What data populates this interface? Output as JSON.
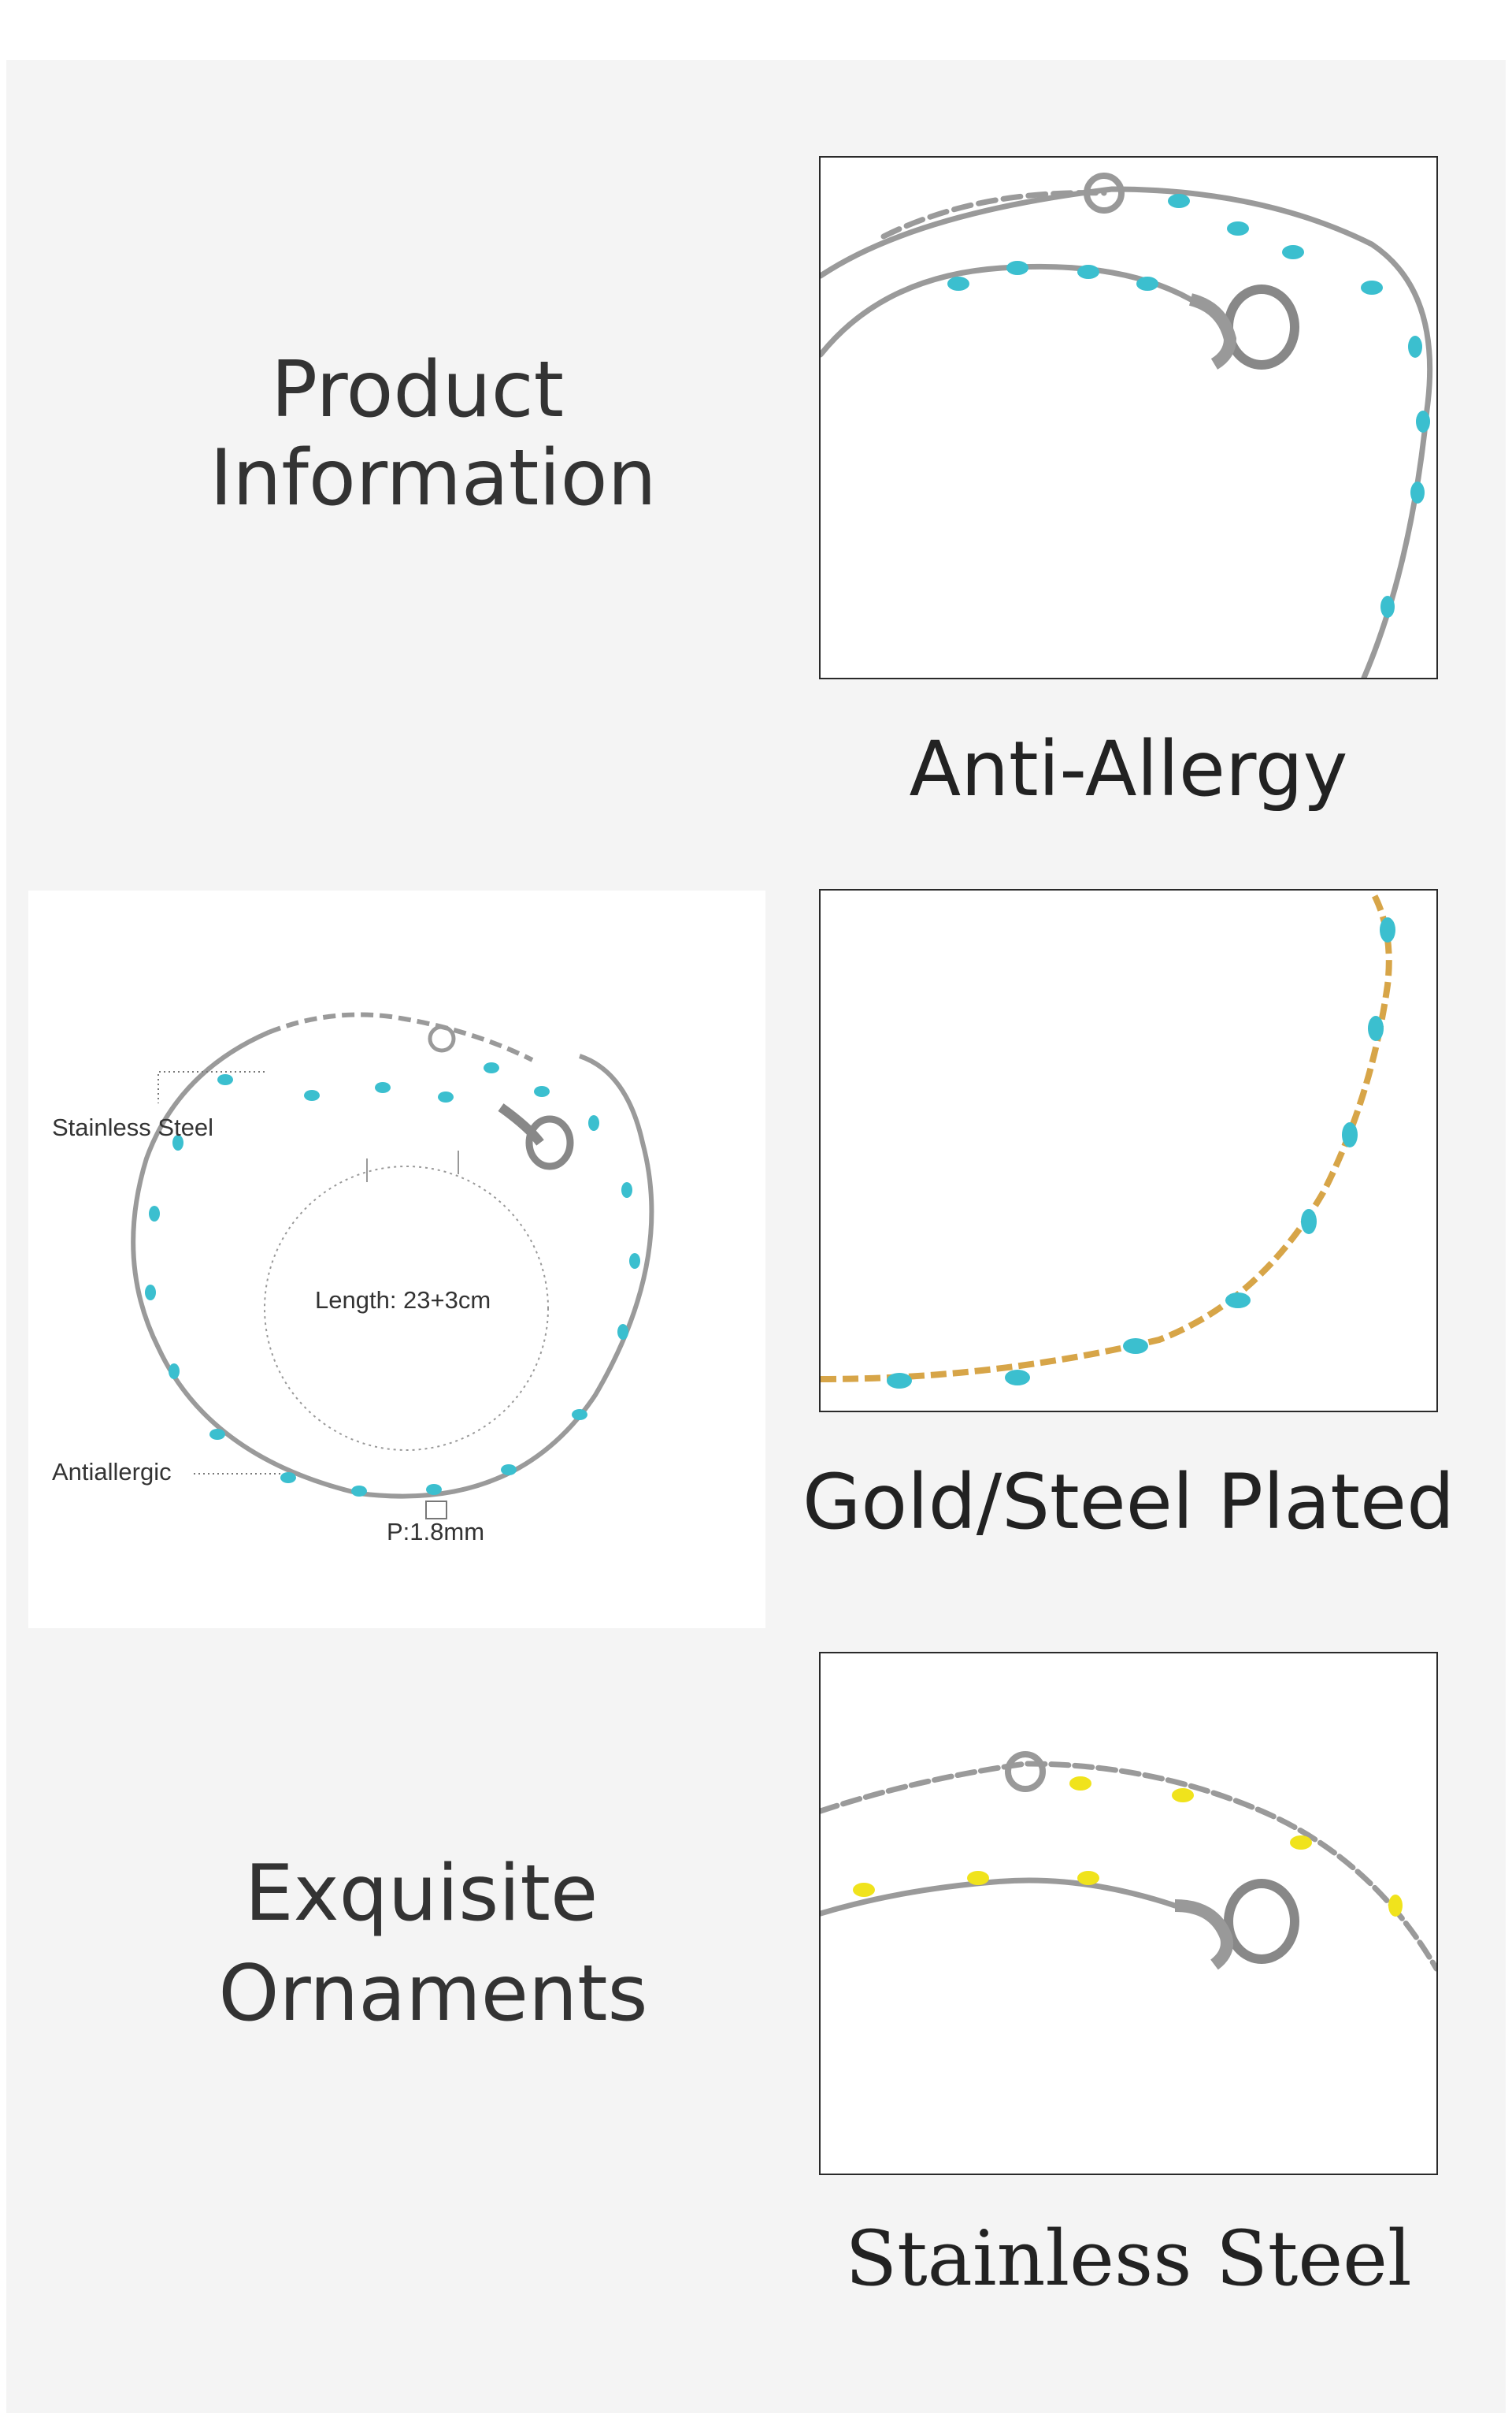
{
  "headings": {
    "product_information": [
      "Product",
      "Information"
    ],
    "exquisite_ornaments": [
      "Exquisite",
      "Ornaments"
    ]
  },
  "features": [
    {
      "caption": "Anti-Allergy",
      "bead_color": "#3bbfcf",
      "metal_color": "#9a9a9a"
    },
    {
      "caption": "Gold/Steel Plated",
      "bead_color": "#3bbfcf",
      "metal_color": "#d7a548"
    },
    {
      "caption": "Stainless Steel",
      "bead_color": "#f0e31c",
      "metal_color": "#9a9a9a"
    }
  ],
  "diagram": {
    "label_material": "Stainless Steel",
    "label_length": "Length: 23+3cm",
    "label_property": "Antiallergic",
    "label_bead_size": "P:1.8mm"
  },
  "colors": {
    "background": "#f4f4f4",
    "text": "#333333",
    "frame": "#2a2a2a",
    "turquoise_bead": "#3bbfcf",
    "yellow_bead": "#f0e31c",
    "gold_chain": "#d7a548",
    "steel_chain": "#9a9a9a"
  }
}
